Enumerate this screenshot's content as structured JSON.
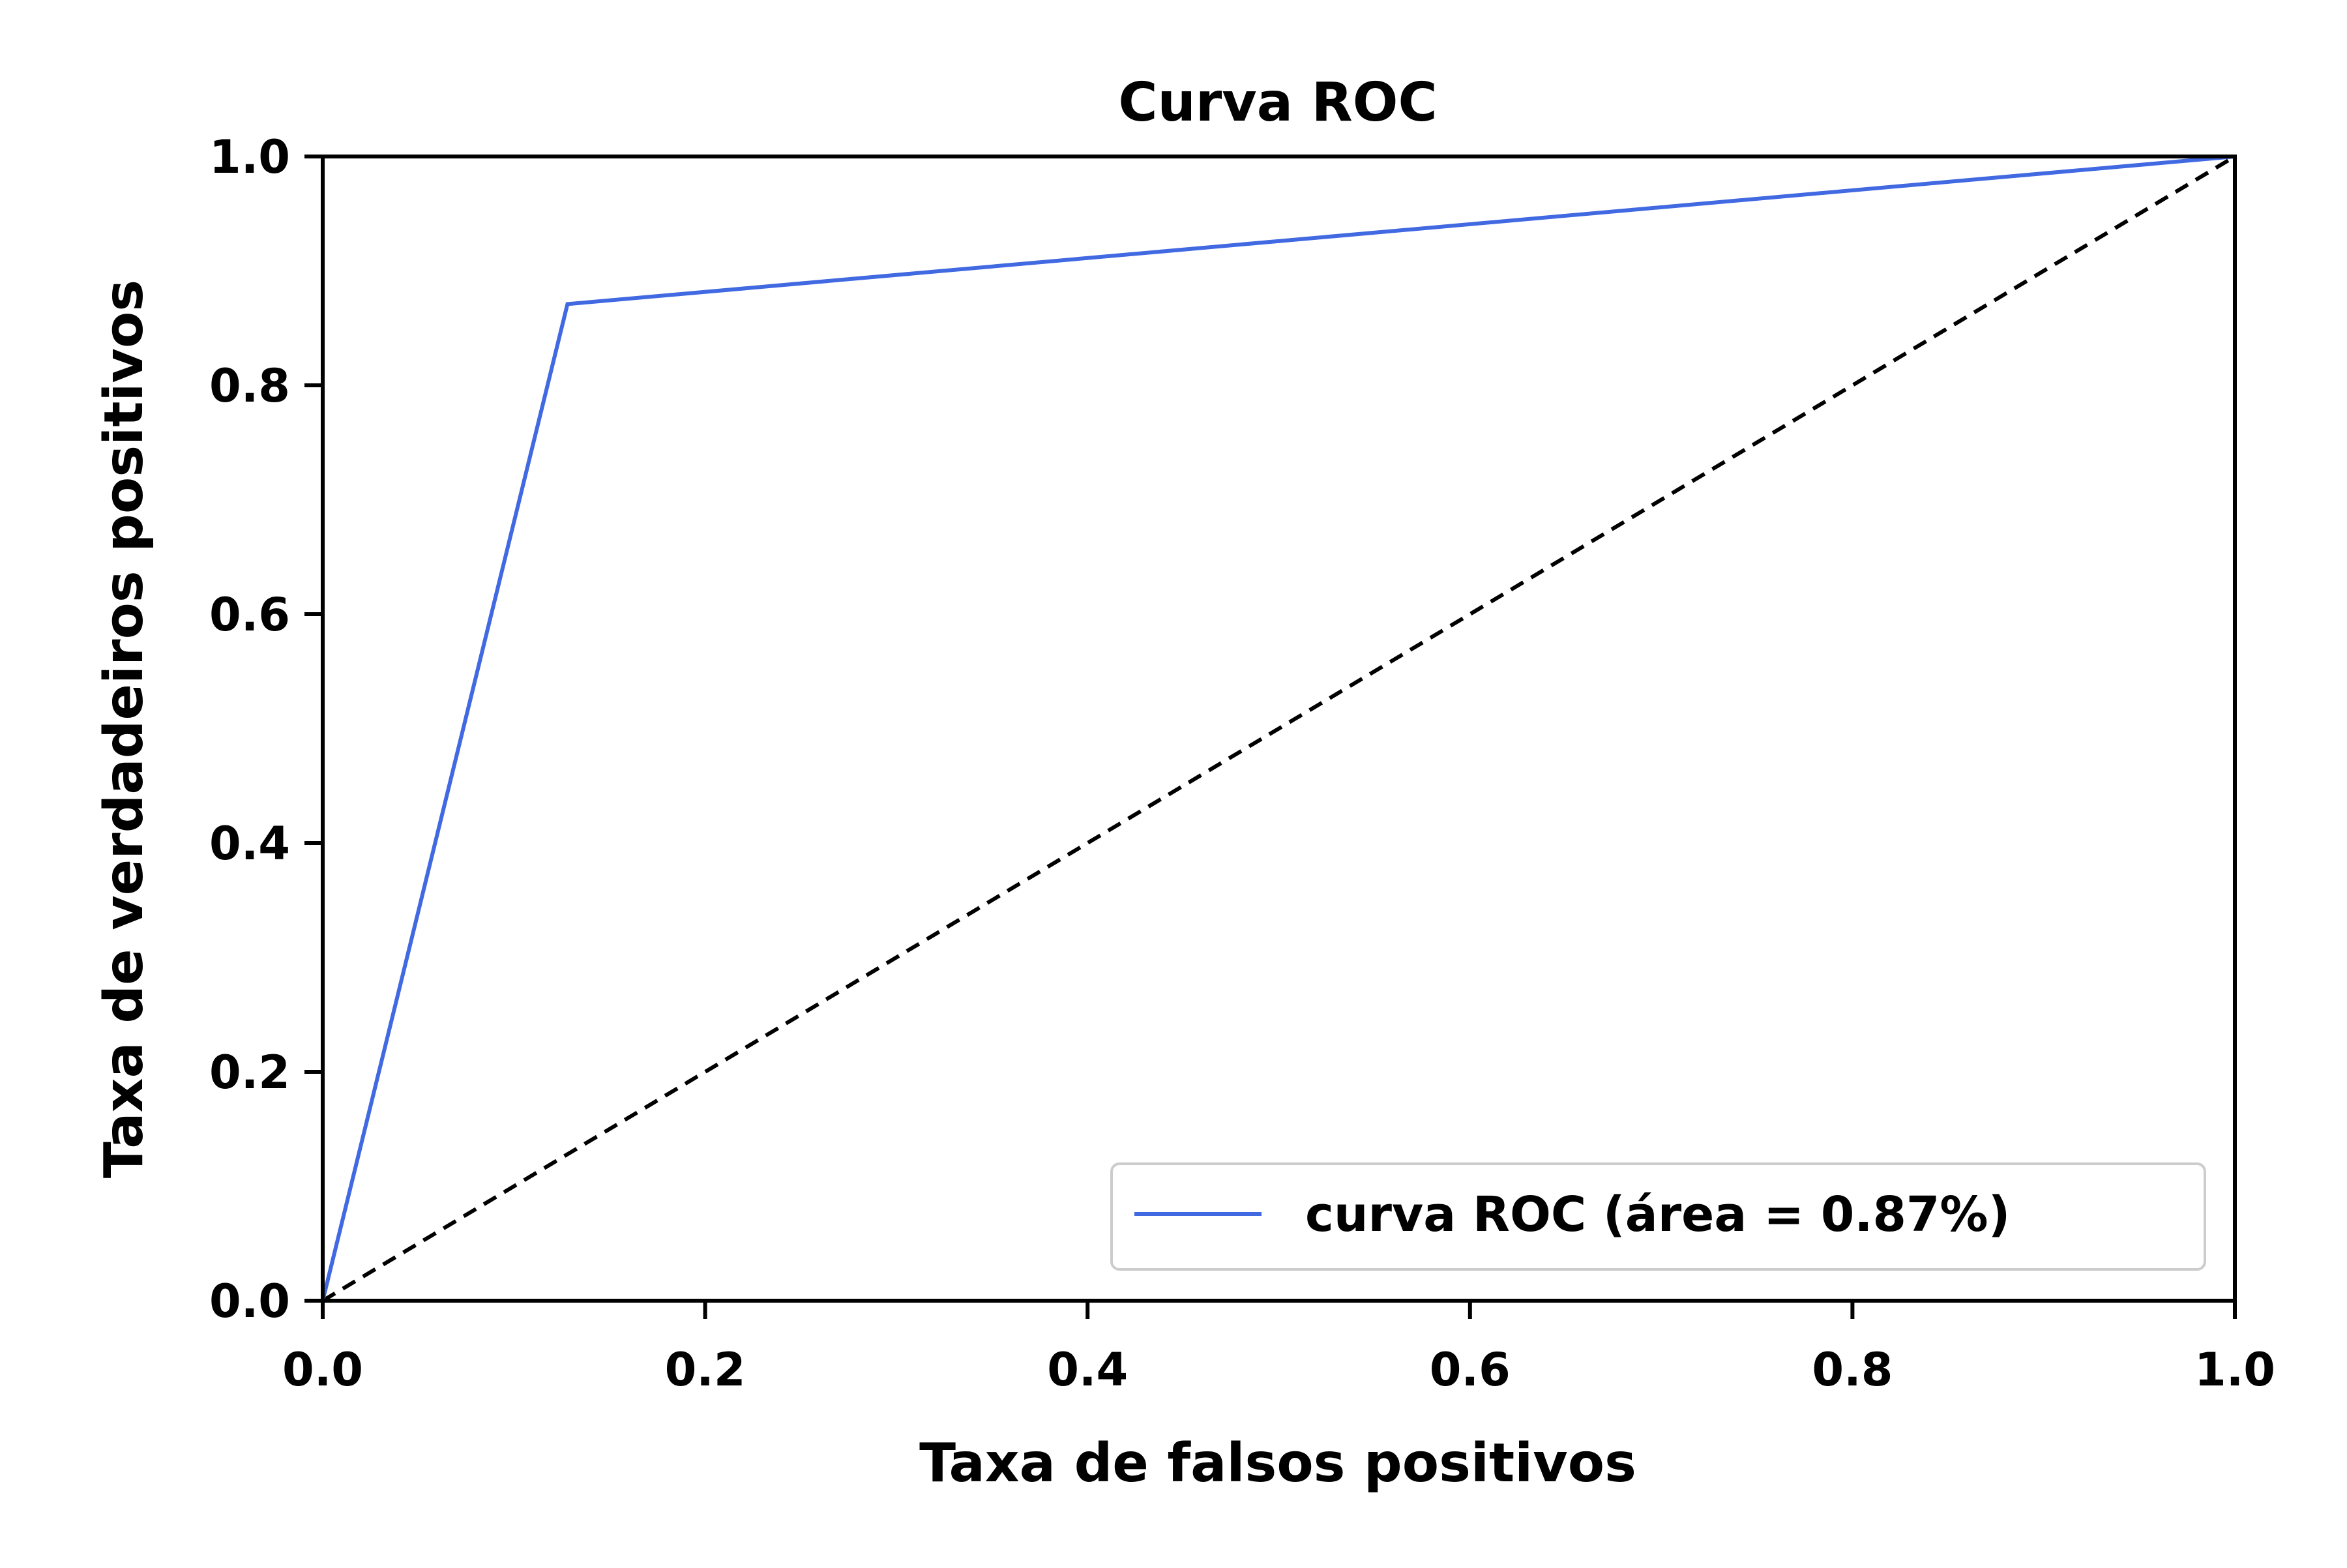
{
  "chart_data": {
    "type": "line",
    "title": "Curva ROC",
    "xlabel": "Taxa de falsos positivos",
    "ylabel": "Taxa de verdadeiros positivos",
    "xlim": [
      0.0,
      1.0
    ],
    "ylim": [
      0.0,
      1.0
    ],
    "xticks": [
      "0.0",
      "0.2",
      "0.4",
      "0.6",
      "0.8",
      "1.0"
    ],
    "yticks": [
      "0.0",
      "0.2",
      "0.4",
      "0.6",
      "0.8",
      "1.0"
    ],
    "grid": false,
    "legend_position": "lower right",
    "series": [
      {
        "name": "curva ROC (área = 0.87%)",
        "color": "#4169e1",
        "x": [
          0.0,
          0.128,
          1.0
        ],
        "y": [
          0.0,
          0.871,
          1.0
        ]
      }
    ],
    "reference_line": {
      "style": "dashed",
      "color": "#000000",
      "x": [
        0.0,
        1.0
      ],
      "y": [
        0.0,
        1.0
      ]
    }
  }
}
